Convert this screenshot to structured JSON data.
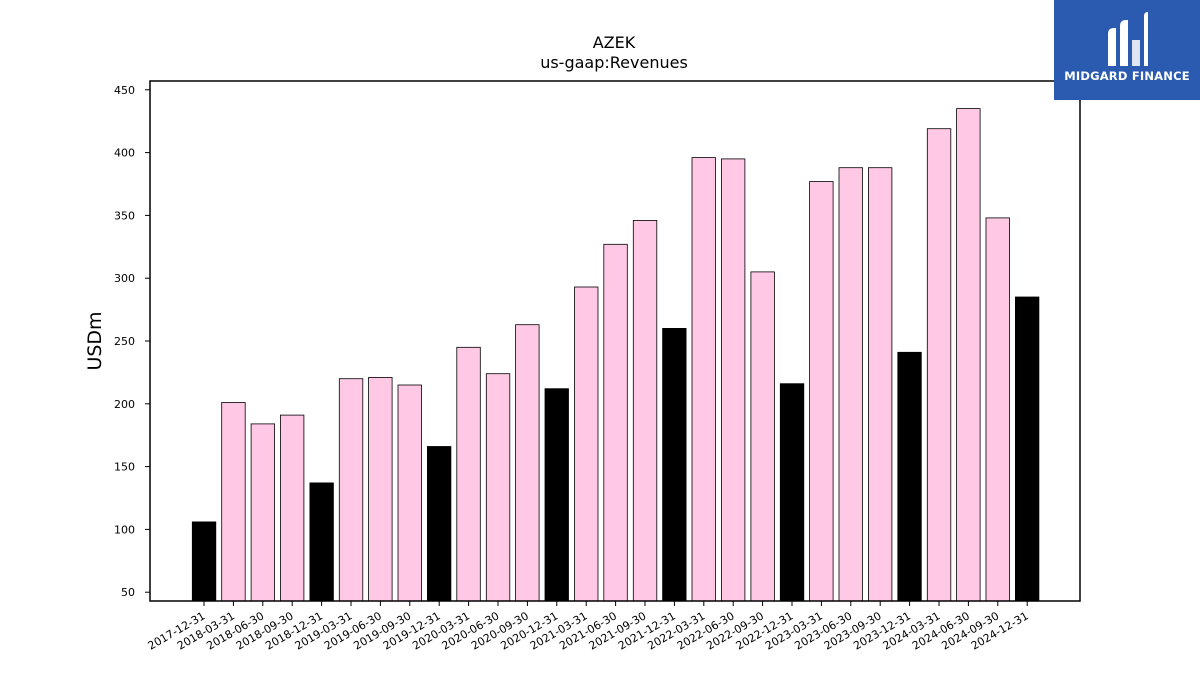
{
  "chart_data": {
    "type": "bar",
    "title": "AZEK",
    "subtitle": "us-gaap:Revenues",
    "ylabel": "USDm",
    "xlabel": "",
    "ylim": [
      43,
      457
    ],
    "yticks": [
      50,
      100,
      150,
      200,
      250,
      300,
      350,
      400,
      450
    ],
    "categories": [
      "2017-12-31",
      "2018-03-31",
      "2018-06-30",
      "2018-09-30",
      "2018-12-31",
      "2019-03-31",
      "2019-06-30",
      "2019-09-30",
      "2019-12-31",
      "2020-03-31",
      "2020-06-30",
      "2020-09-30",
      "2020-12-31",
      "2021-03-31",
      "2021-06-30",
      "2021-09-30",
      "2021-12-31",
      "2022-03-31",
      "2022-06-30",
      "2022-09-30",
      "2022-12-31",
      "2023-03-31",
      "2023-06-30",
      "2023-09-30",
      "2023-12-31",
      "2024-03-31",
      "2024-06-30",
      "2024-09-30",
      "2024-12-31"
    ],
    "values": [
      106,
      201,
      184,
      191,
      137,
      220,
      221,
      215,
      166,
      245,
      224,
      263,
      212,
      293,
      327,
      346,
      260,
      396,
      395,
      305,
      216,
      377,
      388,
      388,
      241,
      419,
      435,
      348,
      285
    ],
    "colors": {
      "quarter": "#ffc9e6",
      "year_end": "#000000",
      "edge": "#000000"
    },
    "grid": false,
    "legend": "none"
  },
  "logo": {
    "text": "MIDGARD FINANCE",
    "background": "#2a5bb0"
  }
}
